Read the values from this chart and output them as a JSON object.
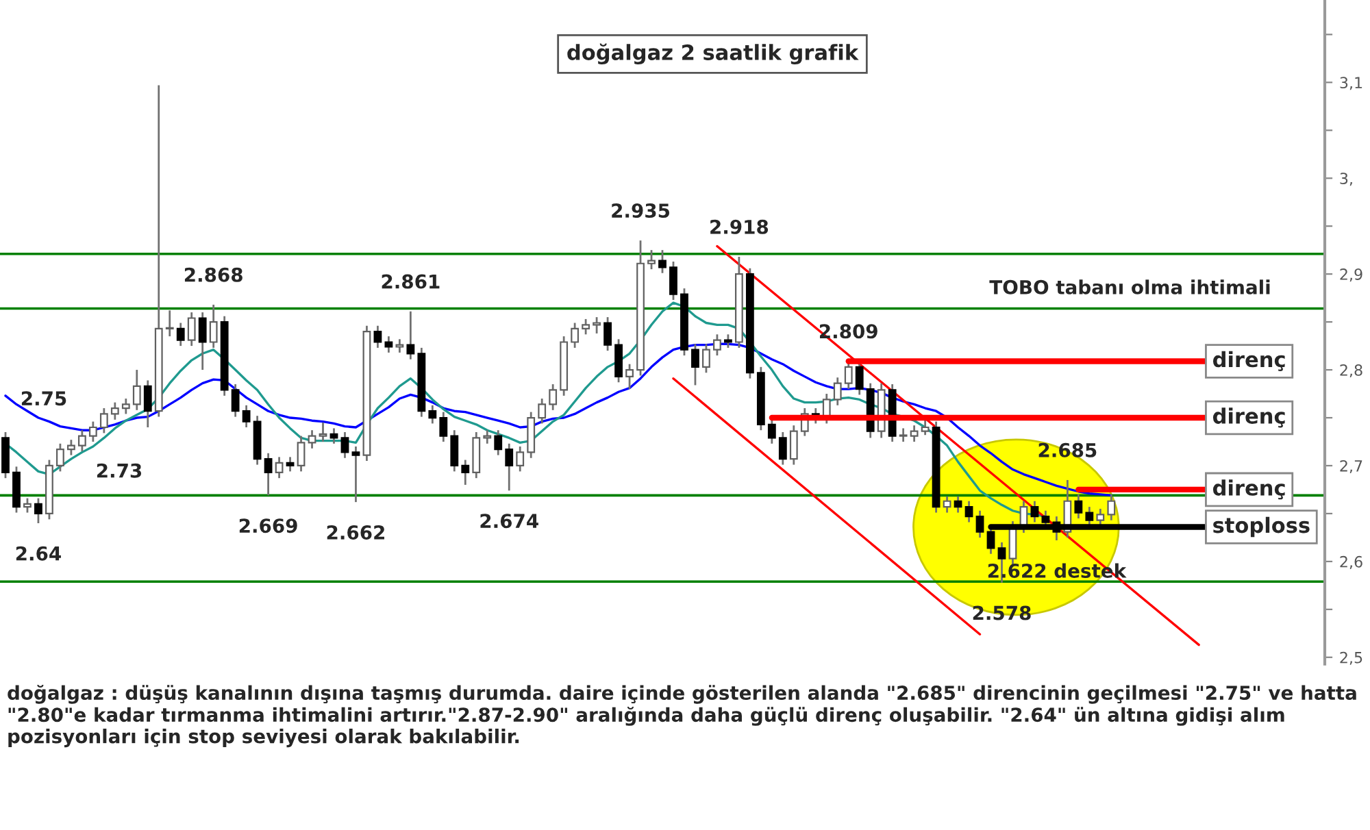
{
  "chart_data": {
    "type": "candlestick",
    "title": "doğalgaz 2 saatlik grafik",
    "categories": [
      null,
      null,
      null,
      null,
      null,
      null,
      null,
      null,
      null,
      null,
      null,
      null,
      null,
      null,
      null,
      null,
      null,
      null,
      null,
      null,
      null,
      null,
      null,
      null,
      null,
      null,
      null,
      null,
      null,
      null,
      null,
      null,
      null,
      null,
      null,
      null,
      null,
      null,
      null,
      null,
      null,
      null,
      null,
      null,
      null,
      null,
      null,
      null,
      null,
      null,
      null,
      null,
      null,
      null,
      null,
      null,
      null,
      null,
      null,
      null,
      null,
      null,
      null,
      null,
      null,
      null,
      null,
      null,
      null,
      null,
      null,
      null,
      null,
      null,
      null,
      null,
      null,
      null,
      null,
      null,
      null,
      null,
      null,
      null,
      null,
      null,
      null,
      null,
      null,
      null,
      null,
      null,
      null,
      null,
      null,
      null,
      null,
      null,
      null,
      null,
      null,
      null,
      null,
      null,
      null,
      null,
      null,
      null,
      null,
      null,
      null,
      null,
      null,
      null,
      null,
      null,
      null,
      null,
      null,
      null,
      null
    ],
    "ohlc": [
      [
        2.729,
        2.735,
        2.687,
        2.693
      ],
      [
        2.693,
        2.699,
        2.651,
        2.657
      ],
      [
        2.657,
        2.666,
        2.651,
        2.66
      ],
      [
        2.66,
        2.666,
        2.64,
        2.65
      ],
      [
        2.65,
        2.706,
        2.644,
        2.7
      ],
      [
        2.7,
        2.723,
        2.694,
        2.717
      ],
      [
        2.717,
        2.727,
        2.711,
        2.721
      ],
      [
        2.721,
        2.737,
        2.715,
        2.731
      ],
      [
        2.731,
        2.746,
        2.725,
        2.74
      ],
      [
        2.74,
        2.76,
        2.734,
        2.754
      ],
      [
        2.754,
        2.766,
        2.748,
        2.76
      ],
      [
        2.76,
        2.77,
        2.754,
        2.764
      ],
      [
        2.764,
        2.8,
        2.758,
        2.783
      ],
      [
        2.783,
        2.789,
        2.74,
        2.757
      ],
      [
        2.757,
        3.097,
        2.751,
        2.843
      ],
      [
        2.843,
        2.862,
        2.835,
        2.843
      ],
      [
        2.843,
        2.849,
        2.825,
        2.831
      ],
      [
        2.831,
        2.86,
        2.825,
        2.854
      ],
      [
        2.854,
        2.86,
        2.8,
        2.829
      ],
      [
        2.829,
        2.868,
        2.823,
        2.85
      ],
      [
        2.85,
        2.856,
        2.773,
        2.779
      ],
      [
        2.779,
        2.785,
        2.751,
        2.757
      ],
      [
        2.757,
        2.763,
        2.74,
        2.746
      ],
      [
        2.746,
        2.752,
        2.701,
        2.707
      ],
      [
        2.707,
        2.713,
        2.669,
        2.693
      ],
      [
        2.693,
        2.709,
        2.687,
        2.703
      ],
      [
        2.703,
        2.709,
        2.694,
        2.7
      ],
      [
        2.7,
        2.731,
        2.694,
        2.724
      ],
      [
        2.724,
        2.737,
        2.718,
        2.731
      ],
      [
        2.731,
        2.745,
        2.725,
        2.733
      ],
      [
        2.733,
        2.739,
        2.723,
        2.729
      ],
      [
        2.729,
        2.735,
        2.708,
        2.714
      ],
      [
        2.714,
        2.72,
        2.662,
        2.711
      ],
      [
        2.711,
        2.846,
        2.705,
        2.84
      ],
      [
        2.84,
        2.846,
        2.823,
        2.829
      ],
      [
        2.829,
        2.835,
        2.818,
        2.824
      ],
      [
        2.824,
        2.832,
        2.818,
        2.826
      ],
      [
        2.826,
        2.861,
        2.811,
        2.817
      ],
      [
        2.817,
        2.823,
        2.751,
        2.757
      ],
      [
        2.757,
        2.763,
        2.744,
        2.75
      ],
      [
        2.75,
        2.756,
        2.725,
        2.731
      ],
      [
        2.731,
        2.737,
        2.694,
        2.7
      ],
      [
        2.7,
        2.706,
        2.68,
        2.693
      ],
      [
        2.693,
        2.735,
        2.687,
        2.729
      ],
      [
        2.729,
        2.737,
        2.723,
        2.731
      ],
      [
        2.731,
        2.737,
        2.711,
        2.717
      ],
      [
        2.717,
        2.723,
        2.674,
        2.7
      ],
      [
        2.7,
        2.72,
        2.694,
        2.714
      ],
      [
        2.714,
        2.756,
        2.708,
        2.75
      ],
      [
        2.75,
        2.77,
        2.744,
        2.764
      ],
      [
        2.764,
        2.785,
        2.758,
        2.779
      ],
      [
        2.779,
        2.835,
        2.773,
        2.829
      ],
      [
        2.829,
        2.849,
        2.823,
        2.843
      ],
      [
        2.843,
        2.853,
        2.837,
        2.847
      ],
      [
        2.847,
        2.855,
        2.838,
        2.849
      ],
      [
        2.849,
        2.855,
        2.82,
        2.826
      ],
      [
        2.826,
        2.832,
        2.787,
        2.793
      ],
      [
        2.793,
        2.806,
        2.78,
        2.8
      ],
      [
        2.8,
        2.935,
        2.794,
        2.911
      ],
      [
        2.911,
        2.925,
        2.905,
        2.914
      ],
      [
        2.914,
        2.925,
        2.901,
        2.907
      ],
      [
        2.907,
        2.913,
        2.873,
        2.879
      ],
      [
        2.879,
        2.885,
        2.815,
        2.821
      ],
      [
        2.821,
        2.827,
        2.784,
        2.803
      ],
      [
        2.803,
        2.827,
        2.797,
        2.821
      ],
      [
        2.821,
        2.837,
        2.815,
        2.831
      ],
      [
        2.831,
        2.837,
        2.823,
        2.829
      ],
      [
        2.829,
        2.918,
        2.823,
        2.9
      ],
      [
        2.9,
        2.906,
        2.791,
        2.797
      ],
      [
        2.797,
        2.803,
        2.737,
        2.743
      ],
      [
        2.743,
        2.749,
        2.723,
        2.729
      ],
      [
        2.729,
        2.735,
        2.701,
        2.707
      ],
      [
        2.707,
        2.742,
        2.701,
        2.736
      ],
      [
        2.736,
        2.76,
        2.731,
        2.754
      ],
      [
        2.754,
        2.76,
        2.744,
        2.75
      ],
      [
        2.75,
        2.775,
        2.744,
        2.769
      ],
      [
        2.769,
        2.792,
        2.763,
        2.786
      ],
      [
        2.786,
        2.809,
        2.78,
        2.803
      ],
      [
        2.803,
        2.809,
        2.774,
        2.78
      ],
      [
        2.78,
        2.786,
        2.729,
        2.736
      ],
      [
        2.736,
        2.786,
        2.729,
        2.779
      ],
      [
        2.779,
        2.785,
        2.725,
        2.731
      ],
      [
        2.731,
        2.739,
        2.725,
        2.731
      ],
      [
        2.731,
        2.742,
        2.725,
        2.736
      ],
      [
        2.736,
        2.751,
        2.732,
        2.74
      ],
      [
        2.74,
        2.746,
        2.651,
        2.657
      ],
      [
        2.657,
        2.668,
        2.651,
        2.663
      ],
      [
        2.663,
        2.668,
        2.651,
        2.657
      ],
      [
        2.657,
        2.663,
        2.641,
        2.647
      ],
      [
        2.647,
        2.653,
        2.625,
        2.631
      ],
      [
        2.631,
        2.637,
        2.608,
        2.614
      ],
      [
        2.614,
        2.62,
        2.578,
        2.603
      ],
      [
        2.603,
        2.642,
        2.597,
        2.636
      ],
      [
        2.636,
        2.663,
        2.63,
        2.657
      ],
      [
        2.657,
        2.663,
        2.641,
        2.647
      ],
      [
        2.647,
        2.653,
        2.635,
        2.641
      ],
      [
        2.641,
        2.647,
        2.622,
        2.631
      ],
      [
        2.631,
        2.685,
        2.625,
        2.663
      ],
      [
        2.663,
        2.67,
        2.645,
        2.651
      ],
      [
        2.651,
        2.657,
        2.637,
        2.643
      ],
      [
        2.643,
        2.655,
        2.637,
        2.649
      ],
      [
        2.649,
        2.67,
        2.643,
        2.663
      ],
      null,
      null,
      null,
      null,
      null,
      null,
      null,
      null,
      null,
      null,
      null,
      null,
      null,
      null,
      null,
      null,
      null,
      null,
      null
    ],
    "series": [
      {
        "type": "line",
        "color": "#0000ff",
        "values": [
          2.773,
          2.764,
          2.757,
          2.75,
          2.746,
          2.741,
          2.739,
          2.737,
          2.737,
          2.74,
          2.743,
          2.747,
          2.75,
          2.751,
          2.757,
          2.764,
          2.771,
          2.779,
          2.786,
          2.79,
          2.789,
          2.78,
          2.771,
          2.764,
          2.757,
          2.753,
          2.75,
          2.749,
          2.747,
          2.746,
          2.744,
          2.741,
          2.74,
          2.747,
          2.754,
          2.761,
          2.77,
          2.774,
          2.771,
          2.766,
          2.76,
          2.757,
          2.756,
          2.753,
          2.75,
          2.747,
          2.744,
          2.74,
          2.741,
          2.746,
          2.749,
          2.75,
          2.754,
          2.76,
          2.766,
          2.771,
          2.777,
          2.781,
          2.791,
          2.803,
          2.813,
          2.821,
          2.824,
          2.826,
          2.826,
          2.827,
          2.827,
          2.826,
          2.823,
          2.817,
          2.811,
          2.806,
          2.799,
          2.793,
          2.787,
          2.783,
          2.78,
          2.78,
          2.781,
          2.779,
          2.776,
          2.771,
          2.767,
          2.764,
          2.76,
          2.757,
          2.75,
          2.74,
          2.731,
          2.721,
          2.713,
          2.704,
          2.696,
          2.691,
          2.687,
          2.683,
          2.679,
          2.676,
          2.673,
          2.671,
          2.67,
          2.669,
          null,
          null,
          null,
          null,
          null,
          null,
          null,
          null,
          null,
          null,
          null,
          null,
          null,
          null,
          null,
          null,
          null,
          null,
          null
        ]
      },
      {
        "type": "line",
        "color": "#1f9a8f",
        "values": [
          2.723,
          2.714,
          2.704,
          2.694,
          2.691,
          2.699,
          2.707,
          2.714,
          2.72,
          2.729,
          2.739,
          2.747,
          2.753,
          2.759,
          2.771,
          2.786,
          2.799,
          2.81,
          2.817,
          2.821,
          2.811,
          2.8,
          2.789,
          2.779,
          2.764,
          2.75,
          2.739,
          2.729,
          2.726,
          2.726,
          2.726,
          2.726,
          2.724,
          2.743,
          2.76,
          2.771,
          2.783,
          2.791,
          2.781,
          2.769,
          2.759,
          2.751,
          2.747,
          2.743,
          2.737,
          2.733,
          2.729,
          2.724,
          2.726,
          2.736,
          2.746,
          2.753,
          2.767,
          2.781,
          2.793,
          2.803,
          2.809,
          2.817,
          2.831,
          2.847,
          2.861,
          2.87,
          2.866,
          2.856,
          2.849,
          2.847,
          2.847,
          2.843,
          2.829,
          2.814,
          2.8,
          2.783,
          2.77,
          2.766,
          2.766,
          2.767,
          2.77,
          2.771,
          2.769,
          2.764,
          2.76,
          2.754,
          2.751,
          2.747,
          2.74,
          2.731,
          2.721,
          2.704,
          2.689,
          2.674,
          2.666,
          2.659,
          2.653,
          2.65,
          2.649,
          2.647,
          null,
          null,
          null,
          null,
          null,
          null,
          null,
          null,
          null,
          null,
          null,
          null,
          null,
          null,
          null,
          null,
          null,
          null,
          null,
          null,
          null,
          null,
          null,
          null,
          null
        ]
      },
      {
        "type": "line",
        "color": "#ff0000",
        "values": [
          null,
          null,
          null,
          null,
          null,
          null,
          null,
          null,
          null,
          null,
          null,
          null,
          null,
          null,
          null,
          null,
          null,
          null,
          null,
          null,
          null,
          null,
          null,
          null,
          null,
          null,
          null,
          null,
          null,
          null,
          null,
          null,
          null,
          null,
          null,
          null,
          null,
          null,
          null,
          null,
          null,
          null,
          null,
          null,
          null,
          null,
          null,
          null,
          null,
          null,
          null,
          null,
          null,
          null,
          null,
          null,
          null,
          null,
          null,
          null,
          null,
          null,
          null,
          null,
          null,
          2.929,
          null,
          null,
          null,
          null,
          null,
          null,
          null,
          null,
          null,
          null,
          null,
          null,
          null,
          null,
          null,
          null,
          null,
          null,
          null,
          null,
          null,
          null,
          null,
          null,
          null,
          null,
          null,
          null,
          null,
          null,
          null,
          null,
          null,
          null,
          null,
          null,
          null,
          null,
          null,
          null,
          null,
          null,
          null,
          2.513,
          null,
          null,
          null,
          null,
          null,
          null,
          null,
          null,
          null,
          null,
          null
        ]
      },
      {
        "type": "line",
        "color": "#ff0000",
        "values": [
          null,
          null,
          null,
          null,
          null,
          null,
          null,
          null,
          null,
          null,
          null,
          null,
          null,
          null,
          null,
          null,
          null,
          null,
          null,
          null,
          null,
          null,
          null,
          null,
          null,
          null,
          null,
          null,
          null,
          null,
          null,
          null,
          null,
          null,
          null,
          null,
          null,
          null,
          null,
          null,
          null,
          null,
          null,
          null,
          null,
          null,
          null,
          null,
          null,
          null,
          null,
          null,
          null,
          null,
          null,
          null,
          null,
          null,
          null,
          null,
          null,
          2.791,
          null,
          null,
          null,
          null,
          null,
          null,
          null,
          null,
          null,
          null,
          null,
          null,
          null,
          null,
          null,
          null,
          null,
          null,
          null,
          null,
          null,
          null,
          null,
          null,
          null,
          null,
          null,
          2.524,
          null,
          null,
          null,
          null,
          null,
          null,
          null,
          null,
          null,
          null,
          null,
          null,
          null,
          null,
          null,
          null,
          null,
          null,
          null,
          null,
          null,
          null,
          null,
          null,
          null,
          null,
          null,
          null,
          null,
          null,
          null
        ]
      }
    ],
    "ylim": [
      2.493,
      3.186
    ],
    "yticks": [
      {
        "value": 2.5,
        "label": "2,5"
      },
      {
        "value": 2.55,
        "label": null
      },
      {
        "value": 2.6,
        "label": "2,6"
      },
      {
        "value": 2.65,
        "label": null
      },
      {
        "value": 2.7,
        "label": "2,7"
      },
      {
        "value": 2.75,
        "label": null
      },
      {
        "value": 2.8,
        "label": "2,8"
      },
      {
        "value": 2.85,
        "label": null
      },
      {
        "value": 2.9,
        "label": "2,9"
      },
      {
        "value": 2.95,
        "label": null
      },
      {
        "value": 3.0,
        "label": "3,"
      },
      {
        "value": 3.05,
        "label": null
      },
      {
        "value": 3.1,
        "label": "3,1"
      },
      {
        "value": 3.15,
        "label": null
      }
    ],
    "tick_labels": "y",
    "ref_lines": [
      {
        "axis": "y",
        "value": 2.864,
        "color": "#008000"
      },
      {
        "axis": "y",
        "value": 2.921,
        "color": "#008000"
      },
      {
        "axis": "y",
        "value": 2.669,
        "color": "#008000"
      },
      {
        "axis": "y",
        "value": 2.579,
        "color": "#008000"
      },
      {
        "axis": "y",
        "value": 2.809,
        "label": "direnç",
        "color": "#ff0000"
      },
      {
        "axis": "y",
        "value": 2.75,
        "label": "direnç",
        "color": "#ff0000"
      },
      {
        "axis": "y",
        "value": 2.675,
        "label": "direnç",
        "color": "#ff0000"
      },
      {
        "axis": "y",
        "value": 2.636,
        "label": "stoploss",
        "color": "#000000"
      }
    ],
    "annotations": [
      {
        "text": "2.868",
        "y": 2.868
      },
      {
        "text": "2.861",
        "y": 2.861
      },
      {
        "text": "2.935",
        "y": 2.935
      },
      {
        "text": "2.918",
        "y": 2.918
      },
      {
        "text": "2.809",
        "y": 2.809
      },
      {
        "text": "2.685",
        "y": 2.685
      },
      {
        "text": "2.669",
        "y": 2.669
      },
      {
        "text": "2.662",
        "y": 2.662
      },
      {
        "text": "2.674",
        "y": 2.674
      },
      {
        "text": "2.578",
        "y": 2.578
      },
      {
        "text": "2.622 destek",
        "y": 2.622
      },
      {
        "text": "2.64",
        "y": 2.64
      },
      "2.75",
      "2.73",
      "TOBO tabanı olma ihtimali",
      "doğalgaz : düşüş kanalının dışına taşmış durumda. daire içinde gösterilen alanda \"2.685\" direncinin geçilmesi \"2.75\" ve hatta \"2.80\"e kadar tırmanma ihtimalini artırır.\"2.87-2.90\" aralığında daha güçlü direnç oluşabilir. \"2.64\" ün altına gidişi alım pozisyonları için stop seviyesi olarak bakılabilir."
    ]
  }
}
